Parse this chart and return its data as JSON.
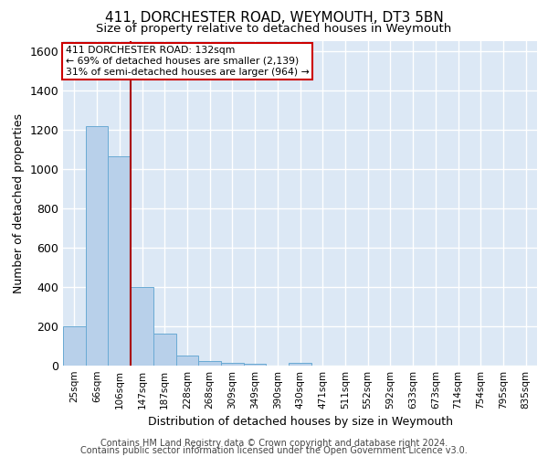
{
  "title": "411, DORCHESTER ROAD, WEYMOUTH, DT3 5BN",
  "subtitle": "Size of property relative to detached houses in Weymouth",
  "xlabel": "Distribution of detached houses by size in Weymouth",
  "ylabel": "Number of detached properties",
  "categories": [
    "25sqm",
    "66sqm",
    "106sqm",
    "147sqm",
    "187sqm",
    "228sqm",
    "268sqm",
    "309sqm",
    "349sqm",
    "390sqm",
    "430sqm",
    "471sqm",
    "511sqm",
    "552sqm",
    "592sqm",
    "633sqm",
    "673sqm",
    "714sqm",
    "754sqm",
    "795sqm",
    "835sqm"
  ],
  "values": [
    200,
    1220,
    1065,
    400,
    165,
    53,
    25,
    15,
    10,
    0,
    12,
    0,
    0,
    0,
    0,
    0,
    0,
    0,
    0,
    0,
    0
  ],
  "bar_color": "#b8d0ea",
  "bar_edge_color": "#6aaad4",
  "background_color": "#dce8f5",
  "grid_color": "#ffffff",
  "property_line_x": 2.5,
  "property_label": "411 DORCHESTER ROAD: 132sqm",
  "annotation_line1": "← 69% of detached houses are smaller (2,139)",
  "annotation_line2": "31% of semi-detached houses are larger (964) →",
  "annotation_box_color": "#ffffff",
  "annotation_border_color": "#cc0000",
  "red_line_color": "#aa0000",
  "ylim": [
    0,
    1650
  ],
  "yticks": [
    0,
    200,
    400,
    600,
    800,
    1000,
    1200,
    1400,
    1600
  ],
  "footer1": "Contains HM Land Registry data © Crown copyright and database right 2024.",
  "footer2": "Contains public sector information licensed under the Open Government Licence v3.0."
}
